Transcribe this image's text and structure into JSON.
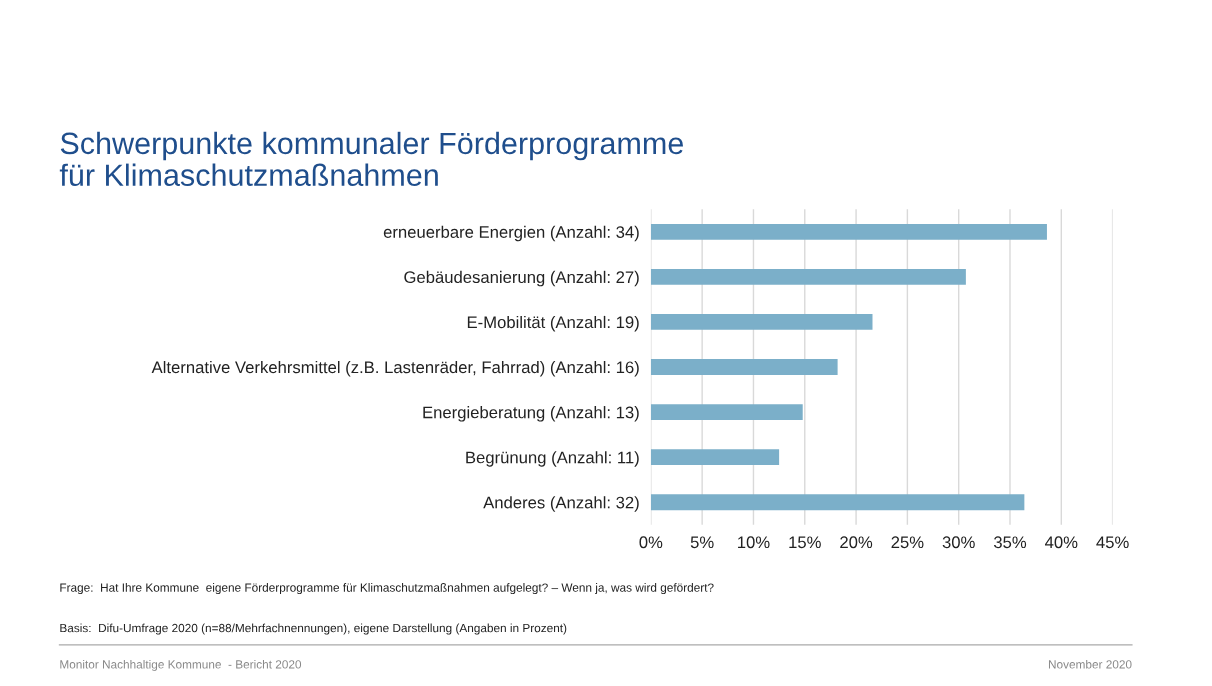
{
  "chart_data": {
    "type": "bar",
    "orientation": "horizontal",
    "title": "Schwerpunkte kommunaler Förderprogramme\nfür Klimaschutzmaßnahmen",
    "categories": [
      "erneuerbare Energien (Anzahl: 34)",
      "Gebäudesanierung (Anzahl: 27)",
      "E-Mobilität (Anzahl: 19)",
      "Alternative Verkehrsmittel (z.B. Lastenräder, Fahrrad) (Anzahl: 16)",
      "Energieberatung (Anzahl: 13)",
      "Begrünung (Anzahl: 11)",
      "Anderes (Anzahl: 32)"
    ],
    "values": [
      38.6,
      30.7,
      21.6,
      18.2,
      14.8,
      12.5,
      36.4
    ],
    "color": "#7bafc9",
    "xlim": [
      0,
      45
    ],
    "xticks": [
      {
        "value": 0,
        "label": "0%"
      },
      {
        "value": 5,
        "label": "5%"
      },
      {
        "value": 10,
        "label": "10%"
      },
      {
        "value": 15,
        "label": "15%"
      },
      {
        "value": 20,
        "label": "20%"
      },
      {
        "value": 25,
        "label": "25%"
      },
      {
        "value": 30,
        "label": "30%"
      },
      {
        "value": 35,
        "label": "35%"
      },
      {
        "value": 40,
        "label": "40%"
      },
      {
        "value": 45,
        "label": "45%"
      }
    ],
    "grid": "x",
    "annotations": [
      "Frage:  Hat Ihre Kommune  eigene Förderprogramme für Klimaschutzmaßnahmen aufgelegt? – Wenn ja, was wird gefördert?",
      "Basis:  Difu-Umfrage 2020 (n=88/Mehrfachnennungen), eigene Darstellung (Angaben in Prozent)",
      "Monitor Nachhaltige Kommune  - Bericht 2020",
      "November 2020"
    ]
  }
}
